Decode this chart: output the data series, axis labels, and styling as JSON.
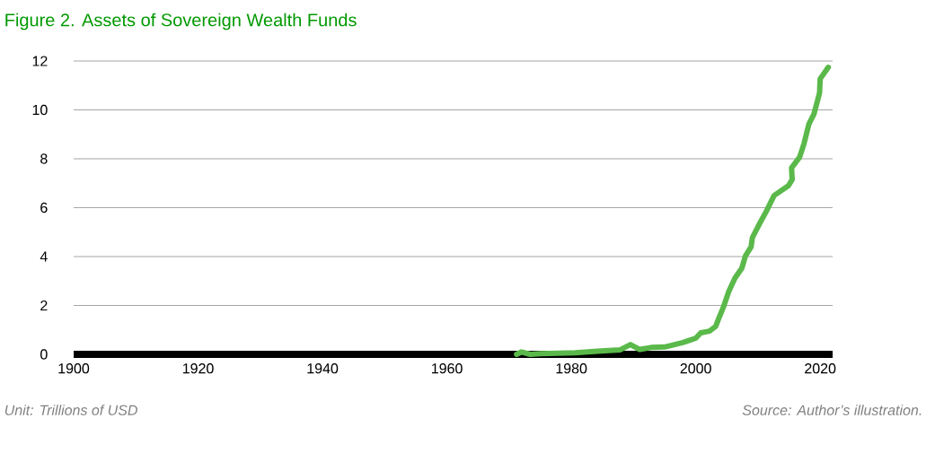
{
  "chart_data": {
    "type": "line",
    "title": "Figure 2. Assets of Sovereign Wealth Funds",
    "annotations": [
      "Unit: Trillions of USD",
      "Source: Author’s illustration."
    ],
    "x": [
      1971.2,
      1972,
      1973.4,
      1975,
      1980.6,
      1984.2,
      1987.8,
      1989.5,
      1991,
      1992.8,
      1995,
      1997.9,
      2000,
      2000.8,
      2002.2,
      2003.2,
      2003.7,
      2004.4,
      2005.3,
      2006.3,
      2007.4,
      2008,
      2008.9,
      2009.1,
      2010.2,
      2011.3,
      2012.6,
      2014.9,
      2015.5,
      2015.4,
      2016.7,
      2017.4,
      2018.2,
      2019,
      2019.6,
      2019.9,
      2020,
      2021,
      2021.3
    ],
    "series": [
      {
        "color": "#5ab94a",
        "values": [
          0,
          0.1,
          0,
          0.03,
          0.06,
          0.13,
          0.18,
          0.4,
          0.2,
          0.28,
          0.3,
          0.48,
          0.66,
          0.88,
          0.95,
          1.14,
          1.47,
          1.9,
          2.57,
          3.12,
          3.52,
          4.03,
          4.4,
          4.77,
          5.32,
          5.83,
          6.5,
          6.9,
          7.15,
          7.63,
          8.07,
          8.62,
          9.43,
          9.83,
          10.4,
          10.7,
          11.27,
          11.63,
          11.74
        ]
      }
    ],
    "xlim": [
      1900,
      2022
    ],
    "xticks": [
      1900,
      1920,
      1940,
      1960,
      1980,
      2000,
      2020
    ],
    "ylim": [
      0,
      12
    ],
    "yticks": [
      0,
      2,
      4,
      6,
      8,
      10,
      12
    ],
    "grid": "y",
    "marker": "none",
    "line_style": "solid"
  }
}
